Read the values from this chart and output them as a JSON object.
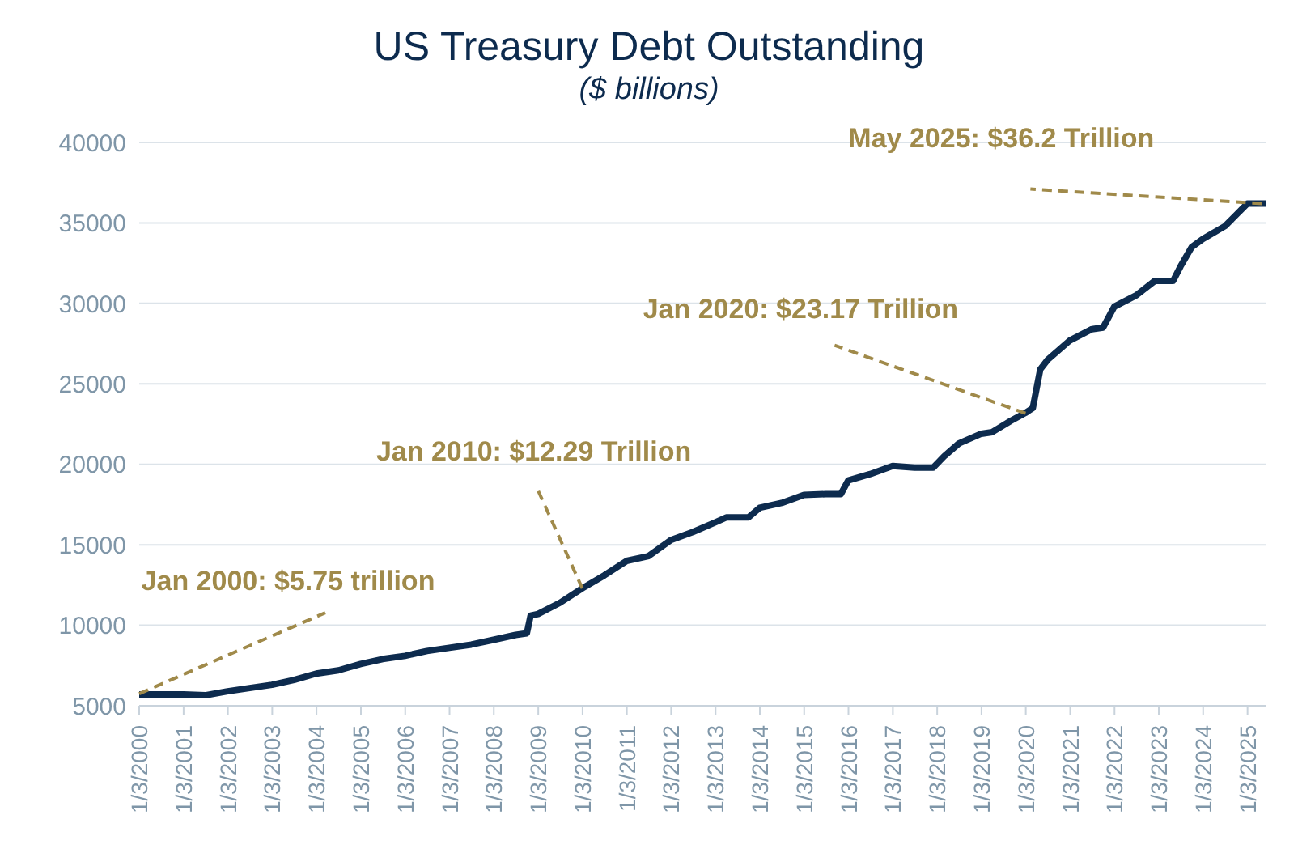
{
  "chart_data": {
    "type": "line",
    "title": "US Treasury Debt Outstanding",
    "subtitle": "($ billions)",
    "annotations": [
      {
        "text": "Jan 2000: $5.75 trillion",
        "x": "2000-01-03",
        "y": 5750
      },
      {
        "text": "Jan 2010: $12.29 Trillion",
        "x": "2010-01",
        "y": 12290
      },
      {
        "text": "Jan 2020: $23.17 Trillion",
        "x": "2020-01",
        "y": 23170
      },
      {
        "text": "May 2025: $36.2 Trillion",
        "x": "2025-05",
        "y": 36200
      }
    ],
    "series": [
      {
        "color": "#0d2b4e",
        "x": [
          "2000-01-03",
          "2001-01",
          "2001-07",
          "2002-01",
          "2002-07",
          "2003-01",
          "2003-07",
          "2004-01",
          "2004-07",
          "2005-01",
          "2005-07",
          "2006-01",
          "2006-07",
          "2007-01",
          "2007-07",
          "2008-01",
          "2008-07",
          "2008-10",
          "2008-11",
          "2009-01",
          "2009-07",
          "2010-01",
          "2010-07",
          "2011-01",
          "2011-07",
          "2012-01",
          "2012-07",
          "2013-01",
          "2013-04",
          "2013-10",
          "2014-01",
          "2014-07",
          "2015-01",
          "2015-07",
          "2015-11",
          "2016-01",
          "2016-07",
          "2017-01",
          "2017-07",
          "2017-12",
          "2018-03",
          "2018-07",
          "2019-01",
          "2019-04",
          "2019-09",
          "2020-01",
          "2020-03",
          "2020-05",
          "2020-07",
          "2021-01",
          "2021-07",
          "2021-10",
          "2022-01",
          "2022-07",
          "2022-12",
          "2023-05",
          "2023-07",
          "2023-10",
          "2024-01",
          "2024-07",
          "2024-10",
          "2025-01",
          "2025-06"
        ],
        "values": [
          5700,
          5700,
          5650,
          5900,
          6100,
          6300,
          6600,
          7000,
          7200,
          7600,
          7900,
          8100,
          8400,
          8600,
          8800,
          9100,
          9400,
          9500,
          10600,
          10700,
          11400,
          12300,
          13100,
          14000,
          14300,
          15300,
          15800,
          16400,
          16700,
          16700,
          17300,
          17600,
          18100,
          18150,
          18150,
          19000,
          19400,
          19900,
          19800,
          19800,
          20500,
          21300,
          21900,
          22000,
          22700,
          23200,
          23500,
          25900,
          26500,
          27700,
          28400,
          28500,
          29800,
          30500,
          31400,
          31400,
          32300,
          33500,
          34000,
          34800,
          35500,
          36200,
          36200
        ]
      }
    ],
    "xlim": [
      "2000-01-03",
      "2025-06"
    ],
    "xticks": [
      {
        "value": "2000-01-03",
        "label": "1/3/2000"
      },
      {
        "value": "2001-01-03",
        "label": "1/3/2001"
      },
      {
        "value": "2002-01-03",
        "label": "1/3/2002"
      },
      {
        "value": "2003-01-03",
        "label": "1/3/2003"
      },
      {
        "value": "2004-01-03",
        "label": "1/3/2004"
      },
      {
        "value": "2005-01-03",
        "label": "1/3/2005"
      },
      {
        "value": "2006-01-03",
        "label": "1/3/2006"
      },
      {
        "value": "2007-01-03",
        "label": "1/3/2007"
      },
      {
        "value": "2008-01-03",
        "label": "1/3/2008"
      },
      {
        "value": "2009-01-03",
        "label": "1/3/2009"
      },
      {
        "value": "2010-01-03",
        "label": "1/3/2010"
      },
      {
        "value": "2011-01-03",
        "label": "1/3/2011"
      },
      {
        "value": "2012-01-03",
        "label": "1/3/2012"
      },
      {
        "value": "2013-01-03",
        "label": "1/3/2013"
      },
      {
        "value": "2014-01-03",
        "label": "1/3/2014"
      },
      {
        "value": "2015-01-03",
        "label": "1/3/2015"
      },
      {
        "value": "2016-01-03",
        "label": "1/3/2016"
      },
      {
        "value": "2017-01-03",
        "label": "1/3/2017"
      },
      {
        "value": "2018-01-03",
        "label": "1/3/2018"
      },
      {
        "value": "2019-01-03",
        "label": "1/3/2019"
      },
      {
        "value": "2020-01-03",
        "label": "1/3/2020"
      },
      {
        "value": "2021-01-03",
        "label": "1/3/2021"
      },
      {
        "value": "2022-01-03",
        "label": "1/3/2022"
      },
      {
        "value": "2023-01-03",
        "label": "1/3/2023"
      },
      {
        "value": "2024-01-03",
        "label": "1/3/2024"
      },
      {
        "value": "2025-01-03",
        "label": "1/3/2025"
      }
    ],
    "ylim": [
      5000,
      40000
    ],
    "yticks": [
      5000,
      10000,
      15000,
      20000,
      25000,
      30000,
      35000,
      40000
    ],
    "grid": "y",
    "legend": false,
    "marker": "none",
    "line_style": "solid"
  }
}
